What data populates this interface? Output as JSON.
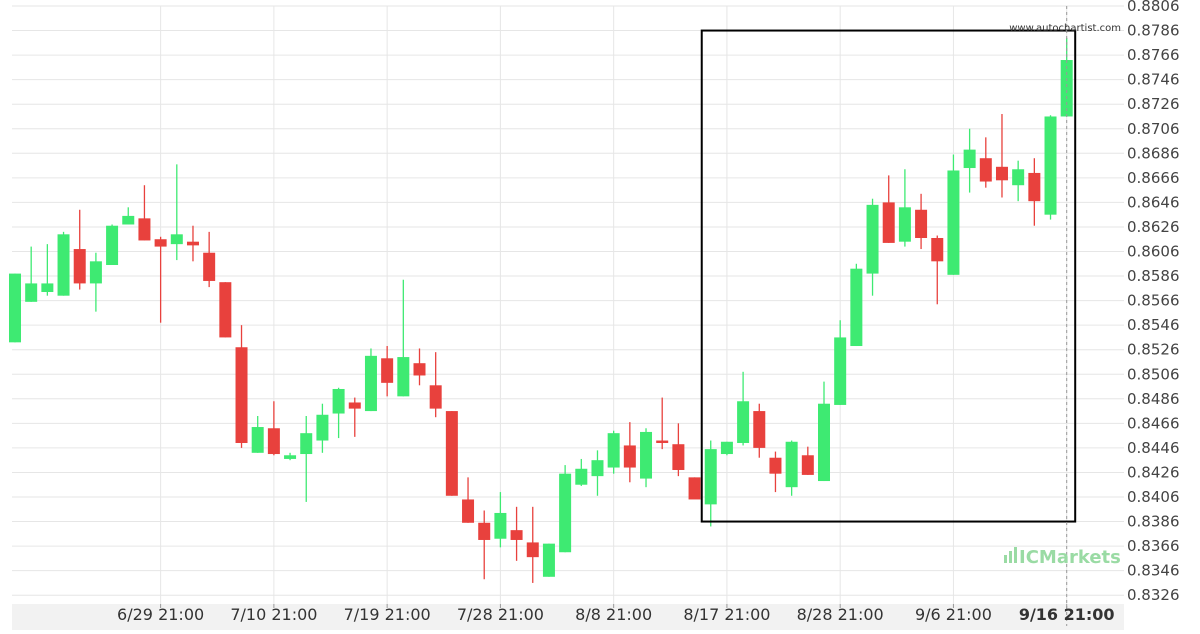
{
  "chart_data": {
    "type": "candlestick",
    "title": "",
    "xlabel": "",
    "ylabel": "",
    "ylim": [
      0.8316,
      0.8806
    ],
    "y_ticks": [
      "0.8806",
      "0.8786",
      "0.8766",
      "0.8746",
      "0.8726",
      "0.8706",
      "0.8686",
      "0.8666",
      "0.8646",
      "0.8626",
      "0.8606",
      "0.8586",
      "0.8566",
      "0.8546",
      "0.8526",
      "0.8506",
      "0.8486",
      "0.8466",
      "0.8446",
      "0.8426",
      "0.8406",
      "0.8386",
      "0.8366",
      "0.8346",
      "0.8326"
    ],
    "x_ticks": [
      {
        "label": "6/29 21:00",
        "candle": 9
      },
      {
        "label": "7/10 21:00",
        "candle": 16
      },
      {
        "label": "7/19 21:00",
        "candle": 23
      },
      {
        "label": "7/28 21:00",
        "candle": 30
      },
      {
        "label": "8/8 21:00",
        "candle": 37
      },
      {
        "label": "8/17 21:00",
        "candle": 44
      },
      {
        "label": "8/28 21:00",
        "candle": 51
      },
      {
        "label": "9/6 21:00",
        "candle": 58
      },
      {
        "label": "9/16 21:00",
        "candle": 65
      }
    ],
    "candles": [
      {
        "o": 0.8532,
        "h": 0.8588,
        "l": 0.8532,
        "c": 0.8588
      },
      {
        "o": 0.8565,
        "h": 0.861,
        "l": 0.8565,
        "c": 0.858
      },
      {
        "o": 0.8573,
        "h": 0.8612,
        "l": 0.857,
        "c": 0.858
      },
      {
        "o": 0.857,
        "h": 0.8622,
        "l": 0.857,
        "c": 0.862
      },
      {
        "o": 0.8608,
        "h": 0.864,
        "l": 0.8575,
        "c": 0.858
      },
      {
        "o": 0.858,
        "h": 0.8605,
        "l": 0.8557,
        "c": 0.8598
      },
      {
        "o": 0.8595,
        "h": 0.8628,
        "l": 0.8595,
        "c": 0.8627
      },
      {
        "o": 0.8628,
        "h": 0.8642,
        "l": 0.8628,
        "c": 0.8635
      },
      {
        "o": 0.8633,
        "h": 0.866,
        "l": 0.8615,
        "c": 0.8615
      },
      {
        "o": 0.8616,
        "h": 0.8618,
        "l": 0.8548,
        "c": 0.861
      },
      {
        "o": 0.8612,
        "h": 0.8677,
        "l": 0.8599,
        "c": 0.862
      },
      {
        "o": 0.8614,
        "h": 0.8627,
        "l": 0.8598,
        "c": 0.8611
      },
      {
        "o": 0.8605,
        "h": 0.8622,
        "l": 0.8577,
        "c": 0.8582
      },
      {
        "o": 0.8581,
        "h": 0.8581,
        "l": 0.8536,
        "c": 0.8536
      },
      {
        "o": 0.8528,
        "h": 0.8546,
        "l": 0.8446,
        "c": 0.845
      },
      {
        "o": 0.8442,
        "h": 0.8472,
        "l": 0.8442,
        "c": 0.8463
      },
      {
        "o": 0.8462,
        "h": 0.8484,
        "l": 0.844,
        "c": 0.8441
      },
      {
        "o": 0.8437,
        "h": 0.8442,
        "l": 0.8436,
        "c": 0.844
      },
      {
        "o": 0.8441,
        "h": 0.8472,
        "l": 0.8402,
        "c": 0.8458
      },
      {
        "o": 0.8452,
        "h": 0.8482,
        "l": 0.8442,
        "c": 0.8473
      },
      {
        "o": 0.8474,
        "h": 0.8495,
        "l": 0.8454,
        "c": 0.8494
      },
      {
        "o": 0.8483,
        "h": 0.8487,
        "l": 0.8455,
        "c": 0.8478
      },
      {
        "o": 0.8476,
        "h": 0.8527,
        "l": 0.8476,
        "c": 0.8521
      },
      {
        "o": 0.8519,
        "h": 0.8529,
        "l": 0.8488,
        "c": 0.8499
      },
      {
        "o": 0.8488,
        "h": 0.8583,
        "l": 0.8488,
        "c": 0.852
      },
      {
        "o": 0.8515,
        "h": 0.8527,
        "l": 0.8497,
        "c": 0.8505
      },
      {
        "o": 0.8497,
        "h": 0.8524,
        "l": 0.8471,
        "c": 0.8478
      },
      {
        "o": 0.8476,
        "h": 0.8476,
        "l": 0.8407,
        "c": 0.8407
      },
      {
        "o": 0.8404,
        "h": 0.8422,
        "l": 0.8385,
        "c": 0.8385
      },
      {
        "o": 0.8385,
        "h": 0.8395,
        "l": 0.8339,
        "c": 0.8371
      },
      {
        "o": 0.8372,
        "h": 0.841,
        "l": 0.8365,
        "c": 0.8393
      },
      {
        "o": 0.8379,
        "h": 0.8398,
        "l": 0.8354,
        "c": 0.8371
      },
      {
        "o": 0.8369,
        "h": 0.8398,
        "l": 0.8336,
        "c": 0.8357
      },
      {
        "o": 0.8341,
        "h": 0.8368,
        "l": 0.8341,
        "c": 0.8368
      },
      {
        "o": 0.8361,
        "h": 0.8432,
        "l": 0.8361,
        "c": 0.8425
      },
      {
        "o": 0.8416,
        "h": 0.8437,
        "l": 0.8415,
        "c": 0.8429
      },
      {
        "o": 0.8423,
        "h": 0.8444,
        "l": 0.8407,
        "c": 0.8436
      },
      {
        "o": 0.843,
        "h": 0.846,
        "l": 0.8425,
        "c": 0.8458
      },
      {
        "o": 0.8448,
        "h": 0.8467,
        "l": 0.8418,
        "c": 0.843
      },
      {
        "o": 0.8421,
        "h": 0.8462,
        "l": 0.8414,
        "c": 0.8459
      },
      {
        "o": 0.8452,
        "h": 0.8487,
        "l": 0.8445,
        "c": 0.845
      },
      {
        "o": 0.8449,
        "h": 0.8466,
        "l": 0.8423,
        "c": 0.8428
      },
      {
        "o": 0.8422,
        "h": 0.8422,
        "l": 0.8405,
        "c": 0.8404
      },
      {
        "o": 0.84,
        "h": 0.8452,
        "l": 0.8382,
        "c": 0.8445
      },
      {
        "o": 0.8441,
        "h": 0.8451,
        "l": 0.844,
        "c": 0.8451
      },
      {
        "o": 0.845,
        "h": 0.8508,
        "l": 0.8448,
        "c": 0.8484
      },
      {
        "o": 0.8476,
        "h": 0.8482,
        "l": 0.8438,
        "c": 0.8446
      },
      {
        "o": 0.8438,
        "h": 0.8443,
        "l": 0.841,
        "c": 0.8425
      },
      {
        "o": 0.8414,
        "h": 0.8452,
        "l": 0.8407,
        "c": 0.8451
      },
      {
        "o": 0.844,
        "h": 0.8447,
        "l": 0.8424,
        "c": 0.8424
      },
      {
        "o": 0.8419,
        "h": 0.85,
        "l": 0.8419,
        "c": 0.8482
      },
      {
        "o": 0.8481,
        "h": 0.855,
        "l": 0.8481,
        "c": 0.8536
      },
      {
        "o": 0.8529,
        "h": 0.8596,
        "l": 0.8529,
        "c": 0.8592
      },
      {
        "o": 0.8588,
        "h": 0.8649,
        "l": 0.857,
        "c": 0.8644
      },
      {
        "o": 0.8646,
        "h": 0.8668,
        "l": 0.8613,
        "c": 0.8613
      },
      {
        "o": 0.8614,
        "h": 0.8673,
        "l": 0.861,
        "c": 0.8642
      },
      {
        "o": 0.864,
        "h": 0.8653,
        "l": 0.8608,
        "c": 0.8617
      },
      {
        "o": 0.8617,
        "h": 0.8619,
        "l": 0.8563,
        "c": 0.8598
      },
      {
        "o": 0.8587,
        "h": 0.8685,
        "l": 0.8587,
        "c": 0.8672
      },
      {
        "o": 0.8674,
        "h": 0.8706,
        "l": 0.8654,
        "c": 0.8689
      },
      {
        "o": 0.8682,
        "h": 0.8699,
        "l": 0.8658,
        "c": 0.8663
      },
      {
        "o": 0.8675,
        "h": 0.8718,
        "l": 0.865,
        "c": 0.8664
      },
      {
        "o": 0.866,
        "h": 0.868,
        "l": 0.8647,
        "c": 0.8673
      },
      {
        "o": 0.867,
        "h": 0.8682,
        "l": 0.8627,
        "c": 0.8647
      },
      {
        "o": 0.8636,
        "h": 0.8717,
        "l": 0.8632,
        "c": 0.8716
      },
      {
        "o": 0.8716,
        "h": 0.878,
        "l": 0.8716,
        "c": 0.8762
      }
    ],
    "highlight_box": {
      "from_candle": 43,
      "to_candle": 65,
      "low": 0.8386,
      "high": 0.8786
    },
    "grid": true,
    "legend": "none",
    "colors": {
      "up": "#3eea72",
      "down": "#e8413d",
      "grid": "#e6e6e6",
      "box": "#000000",
      "axis": "#444444"
    }
  },
  "branding": {
    "watermark": "www.autochartist.com",
    "logo_text": "ICMarkets",
    "logo_color": "#9adba4"
  }
}
